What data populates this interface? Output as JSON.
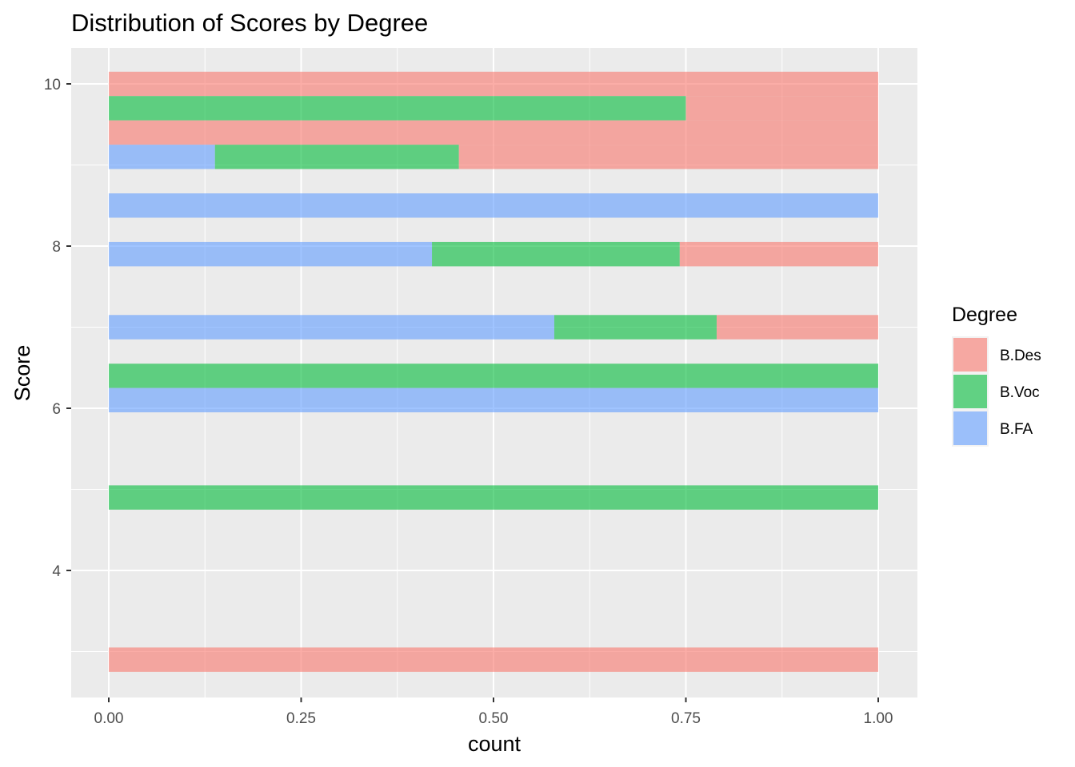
{
  "chart_data": {
    "type": "bar",
    "orientation": "horizontal",
    "position": "fill",
    "title": "Distribution of Scores by Degree",
    "xlabel": "count",
    "ylabel": "Score",
    "xlim": [
      0,
      1
    ],
    "ylim": [
      2.5,
      10.3
    ],
    "x_ticks": [
      "0.00",
      "0.25",
      "0.50",
      "0.75",
      "1.00"
    ],
    "y_ticks": [
      "4",
      "6",
      "8",
      "10"
    ],
    "grid": true,
    "legend_position": "right",
    "legend_title": "Degree",
    "bar_height": 0.3,
    "series": [
      {
        "name": "B.Des",
        "color": "#F8766D"
      },
      {
        "name": "B.Voc",
        "color": "#00BA38"
      },
      {
        "name": "B.FA",
        "color": "#619CFF"
      }
    ],
    "bars": [
      {
        "score": 10.0,
        "segments": [
          {
            "series": "B.Des",
            "start": 0.0,
            "end": 1.0
          }
        ]
      },
      {
        "score": 9.7,
        "segments": [
          {
            "series": "B.Voc",
            "start": 0.0,
            "end": 0.75
          },
          {
            "series": "B.Des",
            "start": 0.75,
            "end": 1.0
          }
        ]
      },
      {
        "score": 9.4,
        "segments": [
          {
            "series": "B.Des",
            "start": 0.0,
            "end": 1.0
          }
        ]
      },
      {
        "score": 9.1,
        "segments": [
          {
            "series": "B.FA",
            "start": 0.0,
            "end": 0.138
          },
          {
            "series": "B.Voc",
            "start": 0.138,
            "end": 0.455
          },
          {
            "series": "B.Des",
            "start": 0.455,
            "end": 1.0
          }
        ]
      },
      {
        "score": 8.5,
        "segments": [
          {
            "series": "B.FA",
            "start": 0.0,
            "end": 1.0
          }
        ]
      },
      {
        "score": 7.9,
        "segments": [
          {
            "series": "B.FA",
            "start": 0.0,
            "end": 0.42
          },
          {
            "series": "B.Voc",
            "start": 0.42,
            "end": 0.742
          },
          {
            "series": "B.Des",
            "start": 0.742,
            "end": 1.0
          }
        ]
      },
      {
        "score": 7.0,
        "segments": [
          {
            "series": "B.FA",
            "start": 0.0,
            "end": 0.579
          },
          {
            "series": "B.Voc",
            "start": 0.579,
            "end": 0.79
          },
          {
            "series": "B.Des",
            "start": 0.79,
            "end": 1.0
          }
        ]
      },
      {
        "score": 6.4,
        "segments": [
          {
            "series": "B.Voc",
            "start": 0.0,
            "end": 1.0
          }
        ]
      },
      {
        "score": 6.1,
        "segments": [
          {
            "series": "B.FA",
            "start": 0.0,
            "end": 1.0
          }
        ]
      },
      {
        "score": 4.9,
        "segments": [
          {
            "series": "B.Voc",
            "start": 0.0,
            "end": 1.0
          }
        ]
      },
      {
        "score": 2.9,
        "segments": [
          {
            "series": "B.Des",
            "start": 0.0,
            "end": 1.0
          }
        ]
      }
    ]
  }
}
